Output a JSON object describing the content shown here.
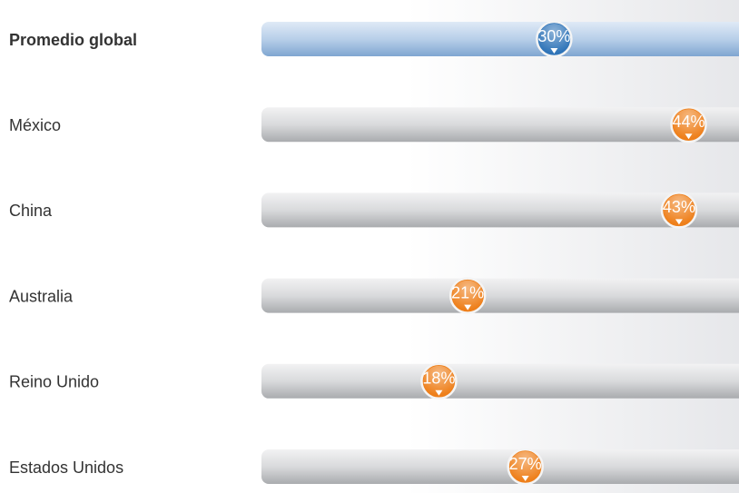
{
  "chart_data": {
    "type": "dot",
    "categories": [
      "Promedio global",
      "México",
      "China",
      "Australia",
      "Reino Unido",
      "Estados Unidos"
    ],
    "values": [
      30,
      44,
      43,
      21,
      18,
      27
    ],
    "value_labels": [
      "30%",
      "44%",
      "43%",
      "21%",
      "18%",
      "27%"
    ],
    "colors": [
      "#2f74b8",
      "#ee7f1a",
      "#ee7f1a",
      "#ee7f1a",
      "#ee7f1a",
      "#ee7f1a"
    ],
    "xlim": [
      0,
      100
    ]
  }
}
